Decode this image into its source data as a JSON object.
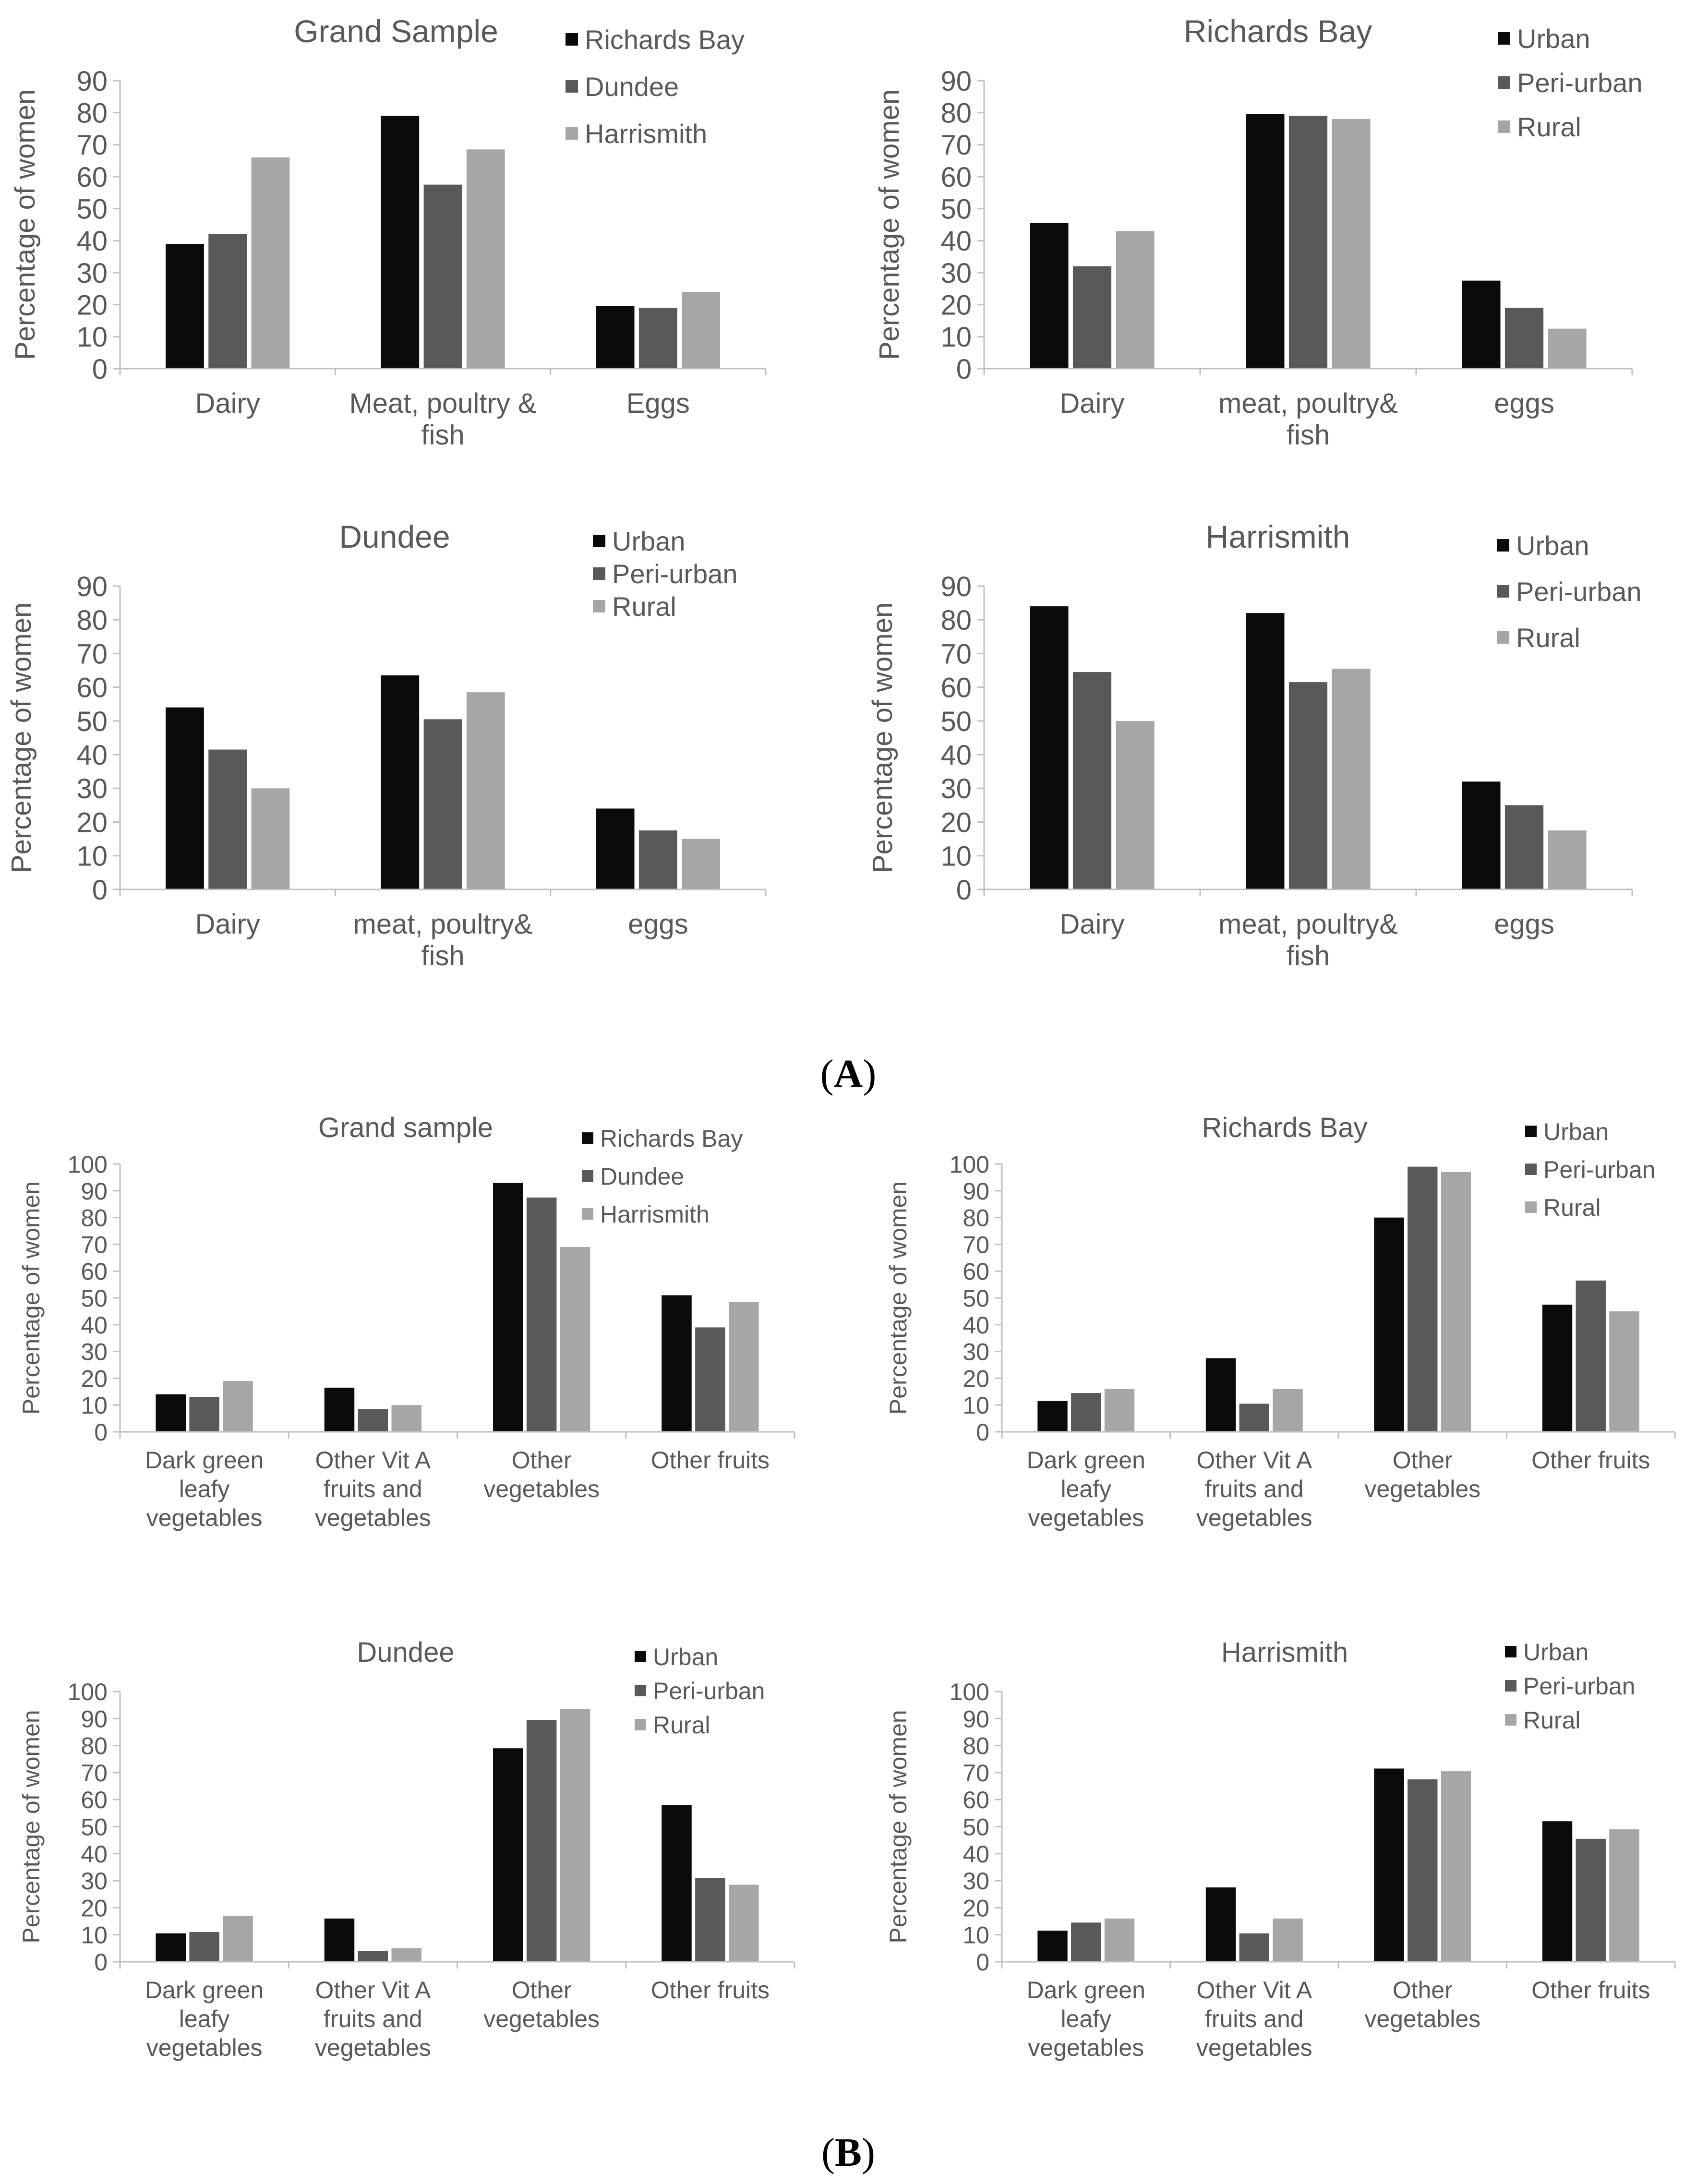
{
  "colors": {
    "s1": "#0a0a0a",
    "s2": "#595959",
    "s3": "#a6a6a6",
    "axis": "#bfbfbf",
    "text": "#595959"
  },
  "figure_labels": {
    "A_open": "(",
    "A_letter": "A",
    "A_close": ")",
    "B_open": "(",
    "B_letter": "B",
    "B_close": ")"
  },
  "chart_data": [
    {
      "type": "bar",
      "panel": "A",
      "title": "Grand Sample",
      "ylabel": "Percentage of women",
      "ylim": [
        0,
        90
      ],
      "yticks": [
        0,
        10,
        20,
        30,
        40,
        50,
        60,
        70,
        80,
        90
      ],
      "legend": "top-right",
      "categories": [
        "Dairy",
        "Meat, poultry & fish",
        "Eggs"
      ],
      "category_lines": [
        [
          "Dairy"
        ],
        [
          "Meat, poultry &",
          "fish"
        ],
        [
          "Eggs"
        ]
      ],
      "series": [
        {
          "name": "Richards Bay",
          "values": [
            39,
            79,
            19.5
          ]
        },
        {
          "name": "Dundee",
          "values": [
            42,
            57.5,
            19
          ]
        },
        {
          "name": "Harrismith",
          "values": [
            66,
            68.5,
            24
          ]
        }
      ]
    },
    {
      "type": "bar",
      "panel": "A",
      "title": "Richards Bay",
      "ylabel": "Percentage of women",
      "ylim": [
        0,
        90
      ],
      "yticks": [
        0,
        10,
        20,
        30,
        40,
        50,
        60,
        70,
        80,
        90
      ],
      "legend": "top-right",
      "categories": [
        "Dairy",
        "meat, poultry& fish",
        "eggs"
      ],
      "category_lines": [
        [
          "Dairy"
        ],
        [
          "meat, poultry&",
          "fish"
        ],
        [
          "eggs"
        ]
      ],
      "series": [
        {
          "name": "Urban",
          "values": [
            45.5,
            79.5,
            27.5
          ]
        },
        {
          "name": "Peri-urban",
          "values": [
            32,
            79,
            19
          ]
        },
        {
          "name": "Rural",
          "values": [
            43,
            78,
            12.5
          ]
        }
      ]
    },
    {
      "type": "bar",
      "panel": "A",
      "title": "Dundee",
      "ylabel": "Percentage of women",
      "ylim": [
        0,
        90
      ],
      "yticks": [
        0,
        10,
        20,
        30,
        40,
        50,
        60,
        70,
        80,
        90
      ],
      "legend": "top-right",
      "categories": [
        "Dairy",
        "meat, poultry& fish",
        "eggs"
      ],
      "category_lines": [
        [
          "Dairy"
        ],
        [
          "meat, poultry&",
          "fish"
        ],
        [
          "eggs"
        ]
      ],
      "series": [
        {
          "name": "Urban",
          "values": [
            54,
            63.5,
            24
          ]
        },
        {
          "name": "Peri-urban",
          "values": [
            41.5,
            50.5,
            17.5
          ]
        },
        {
          "name": "Rural",
          "values": [
            30,
            58.5,
            15
          ]
        }
      ]
    },
    {
      "type": "bar",
      "panel": "A",
      "title": "Harrismith",
      "ylabel": "Percentage of women",
      "ylim": [
        0,
        90
      ],
      "yticks": [
        0,
        10,
        20,
        30,
        40,
        50,
        60,
        70,
        80,
        90
      ],
      "legend": "top-right",
      "categories": [
        "Dairy",
        "meat, poultry& fish",
        "eggs"
      ],
      "category_lines": [
        [
          "Dairy"
        ],
        [
          "meat, poultry&",
          "fish"
        ],
        [
          "eggs"
        ]
      ],
      "series": [
        {
          "name": "Urban",
          "values": [
            84,
            82,
            32
          ]
        },
        {
          "name": "Peri-urban",
          "values": [
            64.5,
            61.5,
            25
          ]
        },
        {
          "name": "Rural",
          "values": [
            50,
            65.5,
            17.5
          ]
        }
      ]
    },
    {
      "type": "bar",
      "panel": "B",
      "title": "Grand sample",
      "ylabel": "Percentage of women",
      "ylim": [
        0,
        100
      ],
      "yticks": [
        0,
        10,
        20,
        30,
        40,
        50,
        60,
        70,
        80,
        90,
        100
      ],
      "legend": "top-right",
      "categories": [
        "Dark green leafy vegetables",
        "Other Vit A fruits and vegetables",
        "Other vegetables",
        "Other fruits"
      ],
      "category_lines": [
        [
          "Dark green",
          "leafy",
          "vegetables"
        ],
        [
          "Other Vit A",
          "fruits and",
          "vegetables"
        ],
        [
          "Other",
          "vegetables"
        ],
        [
          "Other fruits"
        ]
      ],
      "series": [
        {
          "name": "Richards Bay",
          "values": [
            14,
            16.5,
            93,
            51
          ]
        },
        {
          "name": "Dundee",
          "values": [
            13,
            8.5,
            87.5,
            39
          ]
        },
        {
          "name": "Harrismith",
          "values": [
            19,
            10,
            69,
            48.5
          ]
        }
      ]
    },
    {
      "type": "bar",
      "panel": "B",
      "title": "Richards Bay",
      "ylabel": "Percentage of women",
      "ylim": [
        0,
        100
      ],
      "yticks": [
        0,
        10,
        20,
        30,
        40,
        50,
        60,
        70,
        80,
        90,
        100
      ],
      "legend": "top-right",
      "categories": [
        "Dark green leafy vegetables",
        "Other Vit A fruits and vegetables",
        "Other vegetables",
        "Other fruits"
      ],
      "category_lines": [
        [
          "Dark green",
          "leafy",
          "vegetables"
        ],
        [
          "Other Vit A",
          "fruits and",
          "vegetables"
        ],
        [
          "Other",
          "vegetables"
        ],
        [
          "Other fruits"
        ]
      ],
      "series": [
        {
          "name": "Urban",
          "values": [
            11.5,
            27.5,
            80,
            47.5
          ]
        },
        {
          "name": "Peri-urban",
          "values": [
            14.5,
            10.5,
            99,
            56.5
          ]
        },
        {
          "name": "Rural",
          "values": [
            16,
            16,
            97,
            45
          ]
        }
      ]
    },
    {
      "type": "bar",
      "panel": "B",
      "title": "Dundee",
      "ylabel": "Percentage of women",
      "ylim": [
        0,
        100
      ],
      "yticks": [
        0,
        10,
        20,
        30,
        40,
        50,
        60,
        70,
        80,
        90,
        100
      ],
      "legend": "top-right",
      "categories": [
        "Dark green leafy vegetables",
        "Other Vit A fruits and vegetables",
        "Other vegetables",
        "Other fruits"
      ],
      "category_lines": [
        [
          "Dark green",
          "leafy",
          "vegetables"
        ],
        [
          "Other Vit A",
          "fruits and",
          "vegetables"
        ],
        [
          "Other",
          "vegetables"
        ],
        [
          "Other fruits"
        ]
      ],
      "series": [
        {
          "name": "Urban",
          "values": [
            10.5,
            16,
            79,
            58
          ]
        },
        {
          "name": "Peri-urban",
          "values": [
            11,
            4,
            89.5,
            31
          ]
        },
        {
          "name": "Rural",
          "values": [
            17,
            5,
            93.5,
            28.5
          ]
        }
      ]
    },
    {
      "type": "bar",
      "panel": "B",
      "title": "Harrismith",
      "ylabel": "Percentage of women",
      "ylim": [
        0,
        100
      ],
      "yticks": [
        0,
        10,
        20,
        30,
        40,
        50,
        60,
        70,
        80,
        90,
        100
      ],
      "legend": "top-right",
      "categories": [
        "Dark green leafy vegetables",
        "Other Vit A fruits and vegetables",
        "Other vegetables",
        "Other fruits"
      ],
      "category_lines": [
        [
          "Dark green",
          "leafy",
          "vegetables"
        ],
        [
          "Other Vit A",
          "fruits and",
          "vegetables"
        ],
        [
          "Other",
          "vegetables"
        ],
        [
          "Other fruits"
        ]
      ],
      "series": [
        {
          "name": "Urban",
          "values": [
            11.5,
            27.5,
            71.5,
            52
          ]
        },
        {
          "name": "Peri-urban",
          "values": [
            14.5,
            10.5,
            67.5,
            45.5
          ]
        },
        {
          "name": "Rural",
          "values": [
            16,
            16,
            70.5,
            49
          ]
        }
      ]
    }
  ]
}
